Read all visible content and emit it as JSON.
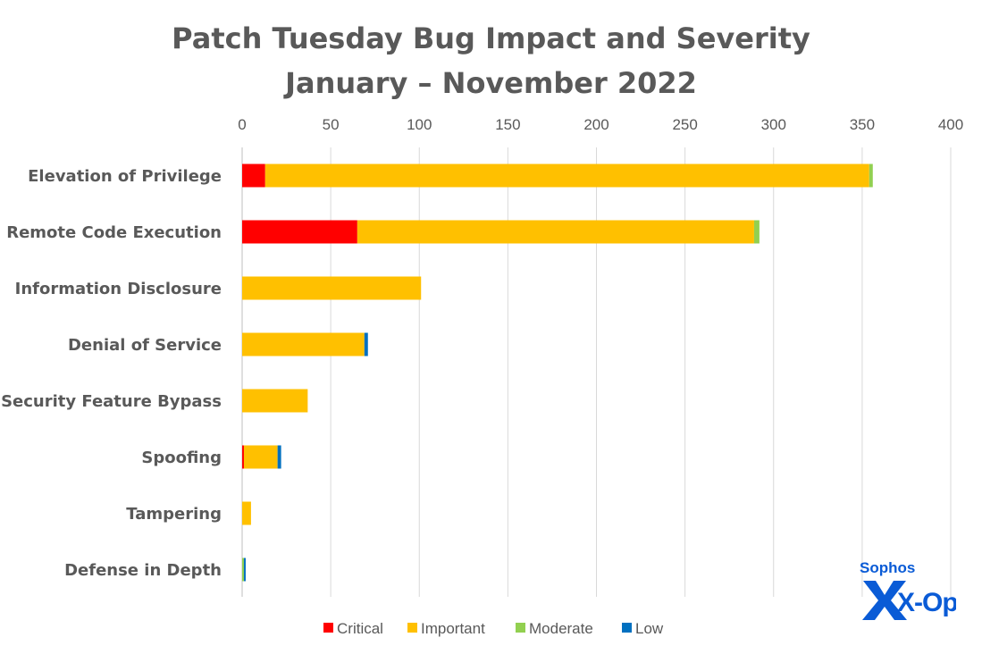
{
  "chart_data": {
    "type": "bar",
    "orientation": "horizontal",
    "stacked": true,
    "title": "Patch Tuesday Bug Impact and Severity",
    "subtitle": "January – November 2022",
    "categories": [
      "Elevation of Privilege",
      "Remote Code Execution",
      "Information Disclosure",
      "Denial of Service",
      "Security Feature Bypass",
      "Spoofing",
      "Tampering",
      "Defense in Depth"
    ],
    "series": [
      {
        "name": "Critical",
        "color": "#ff0000",
        "values": [
          13,
          65,
          0,
          0,
          0,
          1,
          0,
          0
        ]
      },
      {
        "name": "Important",
        "color": "#ffc000",
        "values": [
          341,
          224,
          101,
          69,
          37,
          19,
          5,
          0
        ]
      },
      {
        "name": "Moderate",
        "color": "#92d050",
        "values": [
          2,
          3,
          0,
          0,
          0,
          0,
          0,
          1
        ]
      },
      {
        "name": "Low",
        "color": "#0070c0",
        "values": [
          0,
          0,
          0,
          2,
          0,
          2,
          0,
          1
        ]
      }
    ],
    "xlim": [
      0,
      400
    ],
    "xticks": [
      0,
      50,
      100,
      150,
      200,
      250,
      300,
      350,
      400
    ],
    "x_axis_position": "top",
    "grid": true,
    "legend_position": "bottom"
  },
  "logo": {
    "brand": "Sophos",
    "product": "X-Ops",
    "color": "#0a5bd6"
  }
}
